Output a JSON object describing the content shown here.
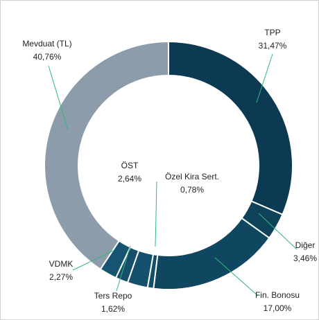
{
  "chart_data": {
    "type": "donut",
    "categories": [
      "TPP",
      "Diğer",
      "Fin. Bonosu",
      "Özel Kira Sert.",
      "ÖST",
      "Ters Repo",
      "VDMK",
      "Mevduat (TL)"
    ],
    "values": [
      31.47,
      3.46,
      17.0,
      0.78,
      2.64,
      1.62,
      2.27,
      40.76
    ],
    "value_labels": [
      "31,47%",
      "3,46%",
      "17,00%",
      "0,78%",
      "2,64%",
      "1,62%",
      "2,27%",
      "40,76%"
    ],
    "colors": [
      "#0c3a52",
      "#0e4259",
      "#0f4660",
      "#134d68",
      "#15516d",
      "#164f6b",
      "#175472",
      "#8c9cab"
    ]
  }
}
